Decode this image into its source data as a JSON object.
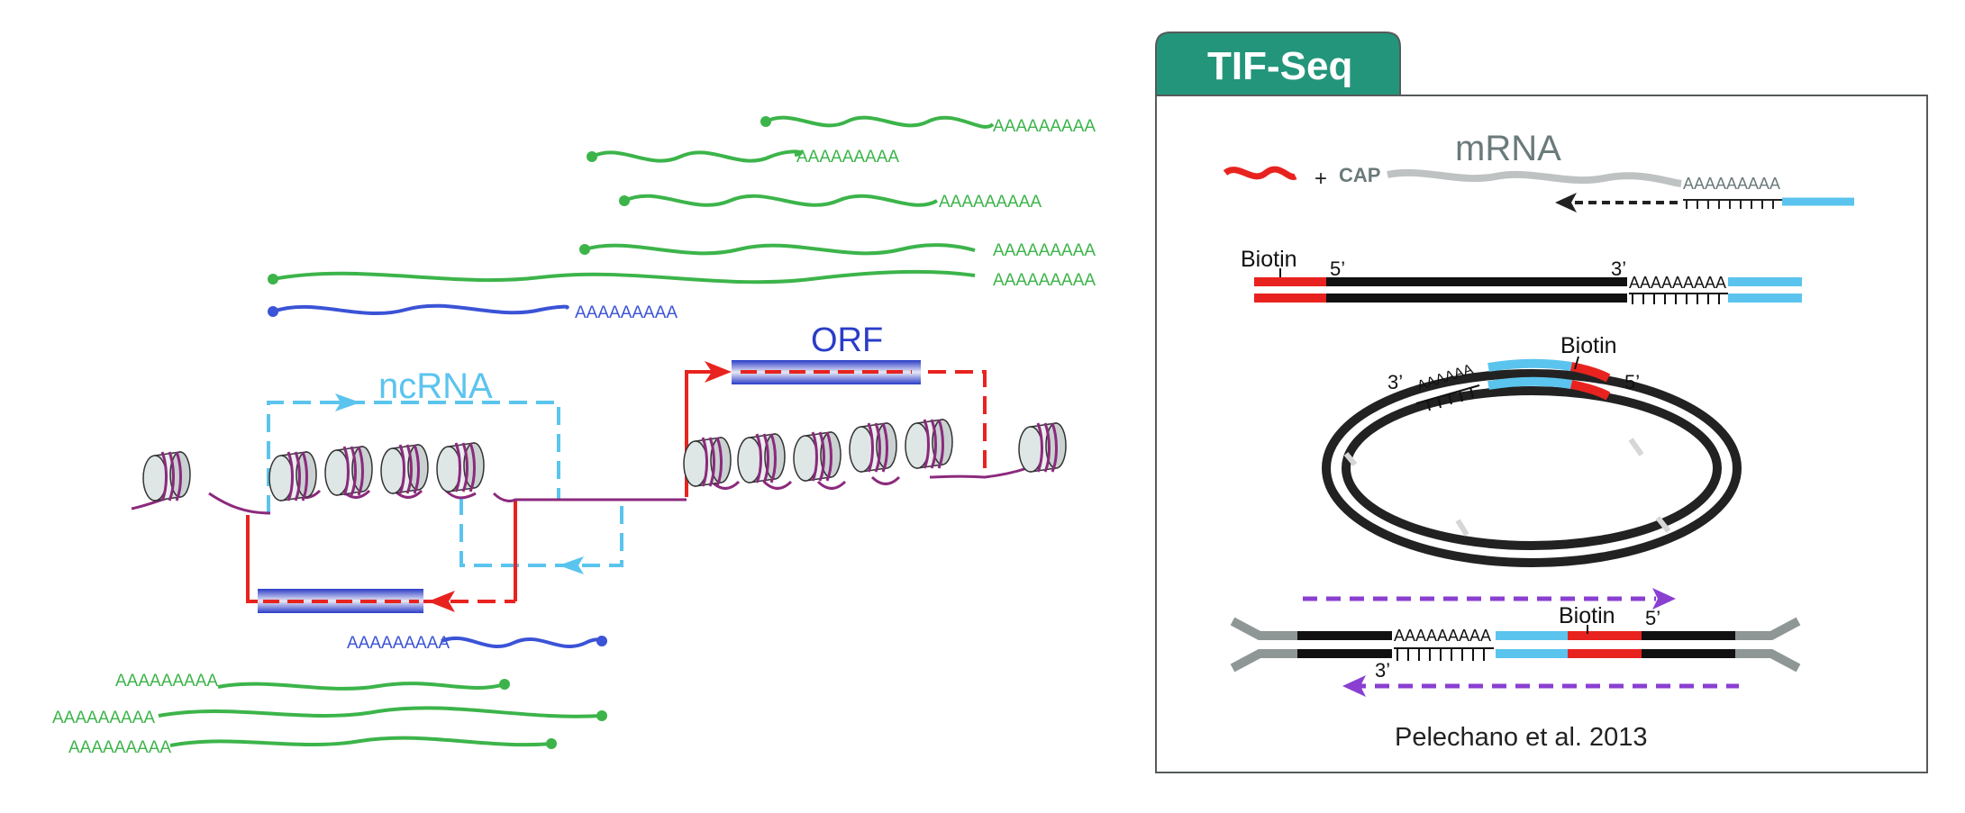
{
  "transcripts": {
    "polyA": "AAAAAAAAA",
    "colors": {
      "sense": "#3cb44a",
      "antisense": "#3b53d6",
      "ncrna": "#5bc4ee",
      "orf_arrow": "#e8231f",
      "chromatin": "#8b2a7d"
    }
  },
  "locus": {
    "ncrna_label": "ncRNA",
    "orf_label": "ORF"
  },
  "panel": {
    "title": "TIF-Seq",
    "header_color": "#23957a",
    "step1": {
      "plus": "+",
      "cap": "CAP",
      "mrna": "mRNA",
      "polyA": "AAAAAAAAA"
    },
    "step2": {
      "biotin": "Biotin",
      "five_prime": "5’",
      "three_prime": "3’",
      "polyA": "AAAAAAAAA"
    },
    "step3": {
      "biotin": "Biotin",
      "three_prime": "3’",
      "five_prime": "5’",
      "polyA": "AAAAAA"
    },
    "step4": {
      "biotin": "Biotin",
      "five_prime": "5’",
      "three_prime": "3’",
      "polyA": "AAAAAAAAA"
    },
    "citation": "Pelechano et al. 2013"
  }
}
